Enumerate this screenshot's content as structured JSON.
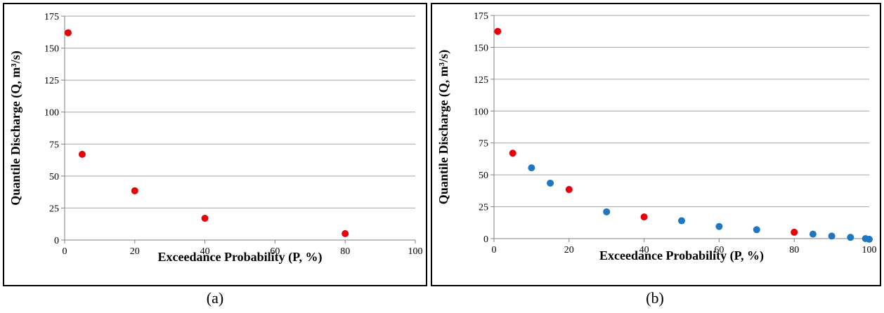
{
  "captions": {
    "a": "(a)",
    "b": "(b)"
  },
  "colors": {
    "red_series": "#e8000b",
    "blue_series": "#1f77c1",
    "grid": "#a6a6a6",
    "axis": "#808080"
  },
  "chart_data": [
    {
      "type": "scatter",
      "title": "",
      "xlabel": "Exceedance Probability (P, %)",
      "ylabel": "Quantile Discharge (Q, m³/s)",
      "xlim": [
        0,
        100
      ],
      "ylim": [
        0,
        175
      ],
      "xticks": [
        "0",
        "20",
        "40",
        "60",
        "80",
        "100"
      ],
      "yticks": [
        "0",
        "25",
        "50",
        "75",
        "100",
        "125",
        "150",
        "175"
      ],
      "grid": "horizontal",
      "series": [
        {
          "color": "#e8000b",
          "points": [
            [
              1,
              162
            ],
            [
              5,
              67
            ],
            [
              20,
              38.5
            ],
            [
              40,
              17
            ],
            [
              80,
              5
            ]
          ]
        }
      ]
    },
    {
      "type": "scatter",
      "title": "",
      "xlabel": "Exceedance Probability (P, %)",
      "ylabel": "Quantile Discharge (Q, m³/s)",
      "xlim": [
        0,
        100
      ],
      "ylim": [
        0,
        175
      ],
      "xticks": [
        "0",
        "20",
        "40",
        "60",
        "80",
        "100"
      ],
      "yticks": [
        "0",
        "25",
        "50",
        "75",
        "100",
        "125",
        "150",
        "175"
      ],
      "grid": "horizontal",
      "series": [
        {
          "color": "#1f77c1",
          "points": [
            [
              10,
              55.5
            ],
            [
              15,
              43.5
            ],
            [
              30,
              21
            ],
            [
              50,
              14
            ],
            [
              60,
              9.5
            ],
            [
              70,
              7
            ],
            [
              85,
              3.5
            ],
            [
              90,
              2
            ],
            [
              95,
              1
            ],
            [
              99,
              0
            ],
            [
              100,
              -0.5
            ]
          ]
        },
        {
          "color": "#e8000b",
          "points": [
            [
              1,
              162.5
            ],
            [
              5,
              67
            ],
            [
              20,
              38.5
            ],
            [
              40,
              17
            ],
            [
              80,
              5
            ]
          ]
        }
      ]
    }
  ]
}
